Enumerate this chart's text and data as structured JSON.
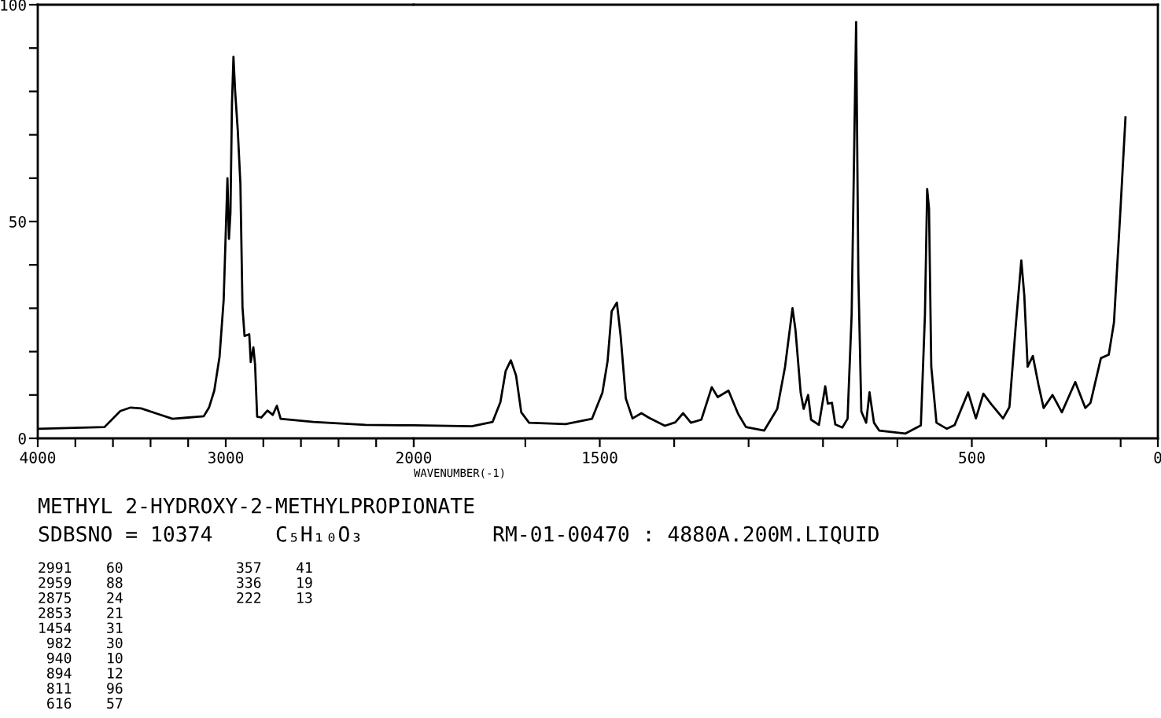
{
  "chart_data": [
    {
      "type": "line",
      "xlim": [
        4000,
        2000
      ],
      "ylim": [
        0,
        100
      ],
      "xticks": [
        4000,
        {
          "value": 3800,
          "label": null
        },
        {
          "value": 3600,
          "label": null
        },
        {
          "value": 3400,
          "label": null
        },
        {
          "value": 3200,
          "label": null
        },
        3000,
        {
          "value": 2800,
          "label": null
        },
        {
          "value": 2600,
          "label": null
        },
        {
          "value": 2400,
          "label": null
        },
        {
          "value": 2200,
          "label": null
        },
        2000
      ],
      "yticks": [
        0,
        {
          "value": 10,
          "label": null
        },
        {
          "value": 20,
          "label": null
        },
        {
          "value": 30,
          "label": null
        },
        {
          "value": 40,
          "label": null
        },
        50,
        {
          "value": 60,
          "label": null
        },
        {
          "value": 70,
          "label": null
        },
        {
          "value": 80,
          "label": null
        },
        {
          "value": 90,
          "label": null
        },
        100
      ],
      "grid": false,
      "legend": false,
      "series": [
        {
          "color": "#000000",
          "x": [
            4000,
            3645,
            3561,
            3506,
            3450,
            3367,
            3283,
            3200,
            3117,
            3089,
            3061,
            3033,
            3011,
            2991,
            2983,
            2975,
            2967,
            2959,
            2950,
            2936,
            2922,
            2911,
            2900,
            2875,
            2867,
            2853,
            2844,
            2833,
            2811,
            2778,
            2750,
            2728,
            2708,
            2533,
            2256,
            2000
          ],
          "values": [
            2.2,
            2.6,
            6.3,
            7.1,
            6.9,
            5.7,
            4.5,
            4.8,
            5.1,
            7.1,
            11,
            18.8,
            32,
            60,
            46,
            52,
            77,
            88,
            80,
            71,
            58.6,
            30.3,
            23.6,
            24,
            17.6,
            21,
            17,
            5,
            4.8,
            6.4,
            5.4,
            7.5,
            4.5,
            3.8,
            3.1,
            3.0
          ]
        }
      ],
      "annotations": [
        "METHYL 2-HYDROXY-2-METHYLPROPIONATE",
        "SDBSNO = 10374",
        "C₅H₁₀O₃",
        "RM-01-00470 : 4880A.200M.LIQUID",
        "2991    60",
        "2959    88",
        "2875    24",
        "2853    21",
        "1454    31",
        " 982    30",
        " 940    10",
        " 894    12",
        " 811    96",
        " 616    57",
        "357    41",
        "336    19",
        "222    13"
      ]
    },
    {
      "type": "line",
      "xlim": [
        2000,
        0
      ],
      "ylim": [
        0,
        100
      ],
      "tick_labels": "x",
      "xlabel": "WAVENUMBER(-1)",
      "xticks": [
        {
          "value": 2000,
          "label": null
        },
        {
          "value": 1700,
          "label": null
        },
        1500,
        {
          "value": 1300,
          "label": null
        },
        {
          "value": 1100,
          "label": null
        },
        {
          "value": 900,
          "label": null
        },
        {
          "value": 700,
          "label": null
        },
        500,
        {
          "value": 300,
          "label": null
        },
        {
          "value": 100,
          "label": null
        },
        0
      ],
      "yticks": [
        0,
        50,
        100
      ],
      "grid": false,
      "legend": false,
      "series": [
        {
          "color": "#000000",
          "x": [
            2000,
            1844,
            1788,
            1767,
            1753,
            1739,
            1725,
            1711,
            1690,
            1592,
            1521,
            1493,
            1479,
            1468,
            1454,
            1444,
            1430,
            1412,
            1388,
            1367,
            1325,
            1297,
            1276,
            1255,
            1227,
            1199,
            1183,
            1154,
            1128,
            1107,
            1058,
            1023,
            1002,
            982,
            974,
            960,
            952,
            940,
            932,
            911,
            894,
            887,
            876,
            867,
            848,
            834,
            823,
            811,
            805,
            797,
            784,
            775,
            763,
            749,
            679,
            637,
            626,
            620,
            615,
            609,
            595,
            567,
            546,
            510,
            489,
            469,
            448,
            416,
            399,
            382,
            367,
            359,
            350,
            336,
            321,
            307,
            283,
            258,
            222,
            195,
            181,
            153,
            132,
            118,
            101,
            87
          ],
          "values": [
            3.0,
            2.8,
            3.8,
            8.4,
            15.5,
            18,
            14.5,
            6,
            3.6,
            3.3,
            4.5,
            10.5,
            17.8,
            29.3,
            31.3,
            23.7,
            9.2,
            4.6,
            5.8,
            4.7,
            2.9,
            3.7,
            5.8,
            3.6,
            4.3,
            11.8,
            9.5,
            11,
            5.6,
            2.6,
            1.8,
            6.8,
            16.5,
            30,
            25,
            10.5,
            6.8,
            10,
            4.3,
            3.1,
            12,
            8,
            8.2,
            3.2,
            2.5,
            4.5,
            28.6,
            96,
            37.5,
            6.2,
            3.6,
            10.6,
            3.6,
            1.8,
            1.1,
            3,
            28.5,
            57.5,
            52.9,
            16.5,
            3.6,
            2.2,
            3.1,
            10.6,
            4.6,
            10.3,
            7.9,
            4.6,
            7.2,
            25.9,
            41,
            33,
            16.5,
            19,
            12.4,
            7,
            10,
            6,
            13,
            7,
            8.2,
            18.5,
            19.3,
            26.7,
            52,
            74
          ]
        }
      ]
    }
  ]
}
